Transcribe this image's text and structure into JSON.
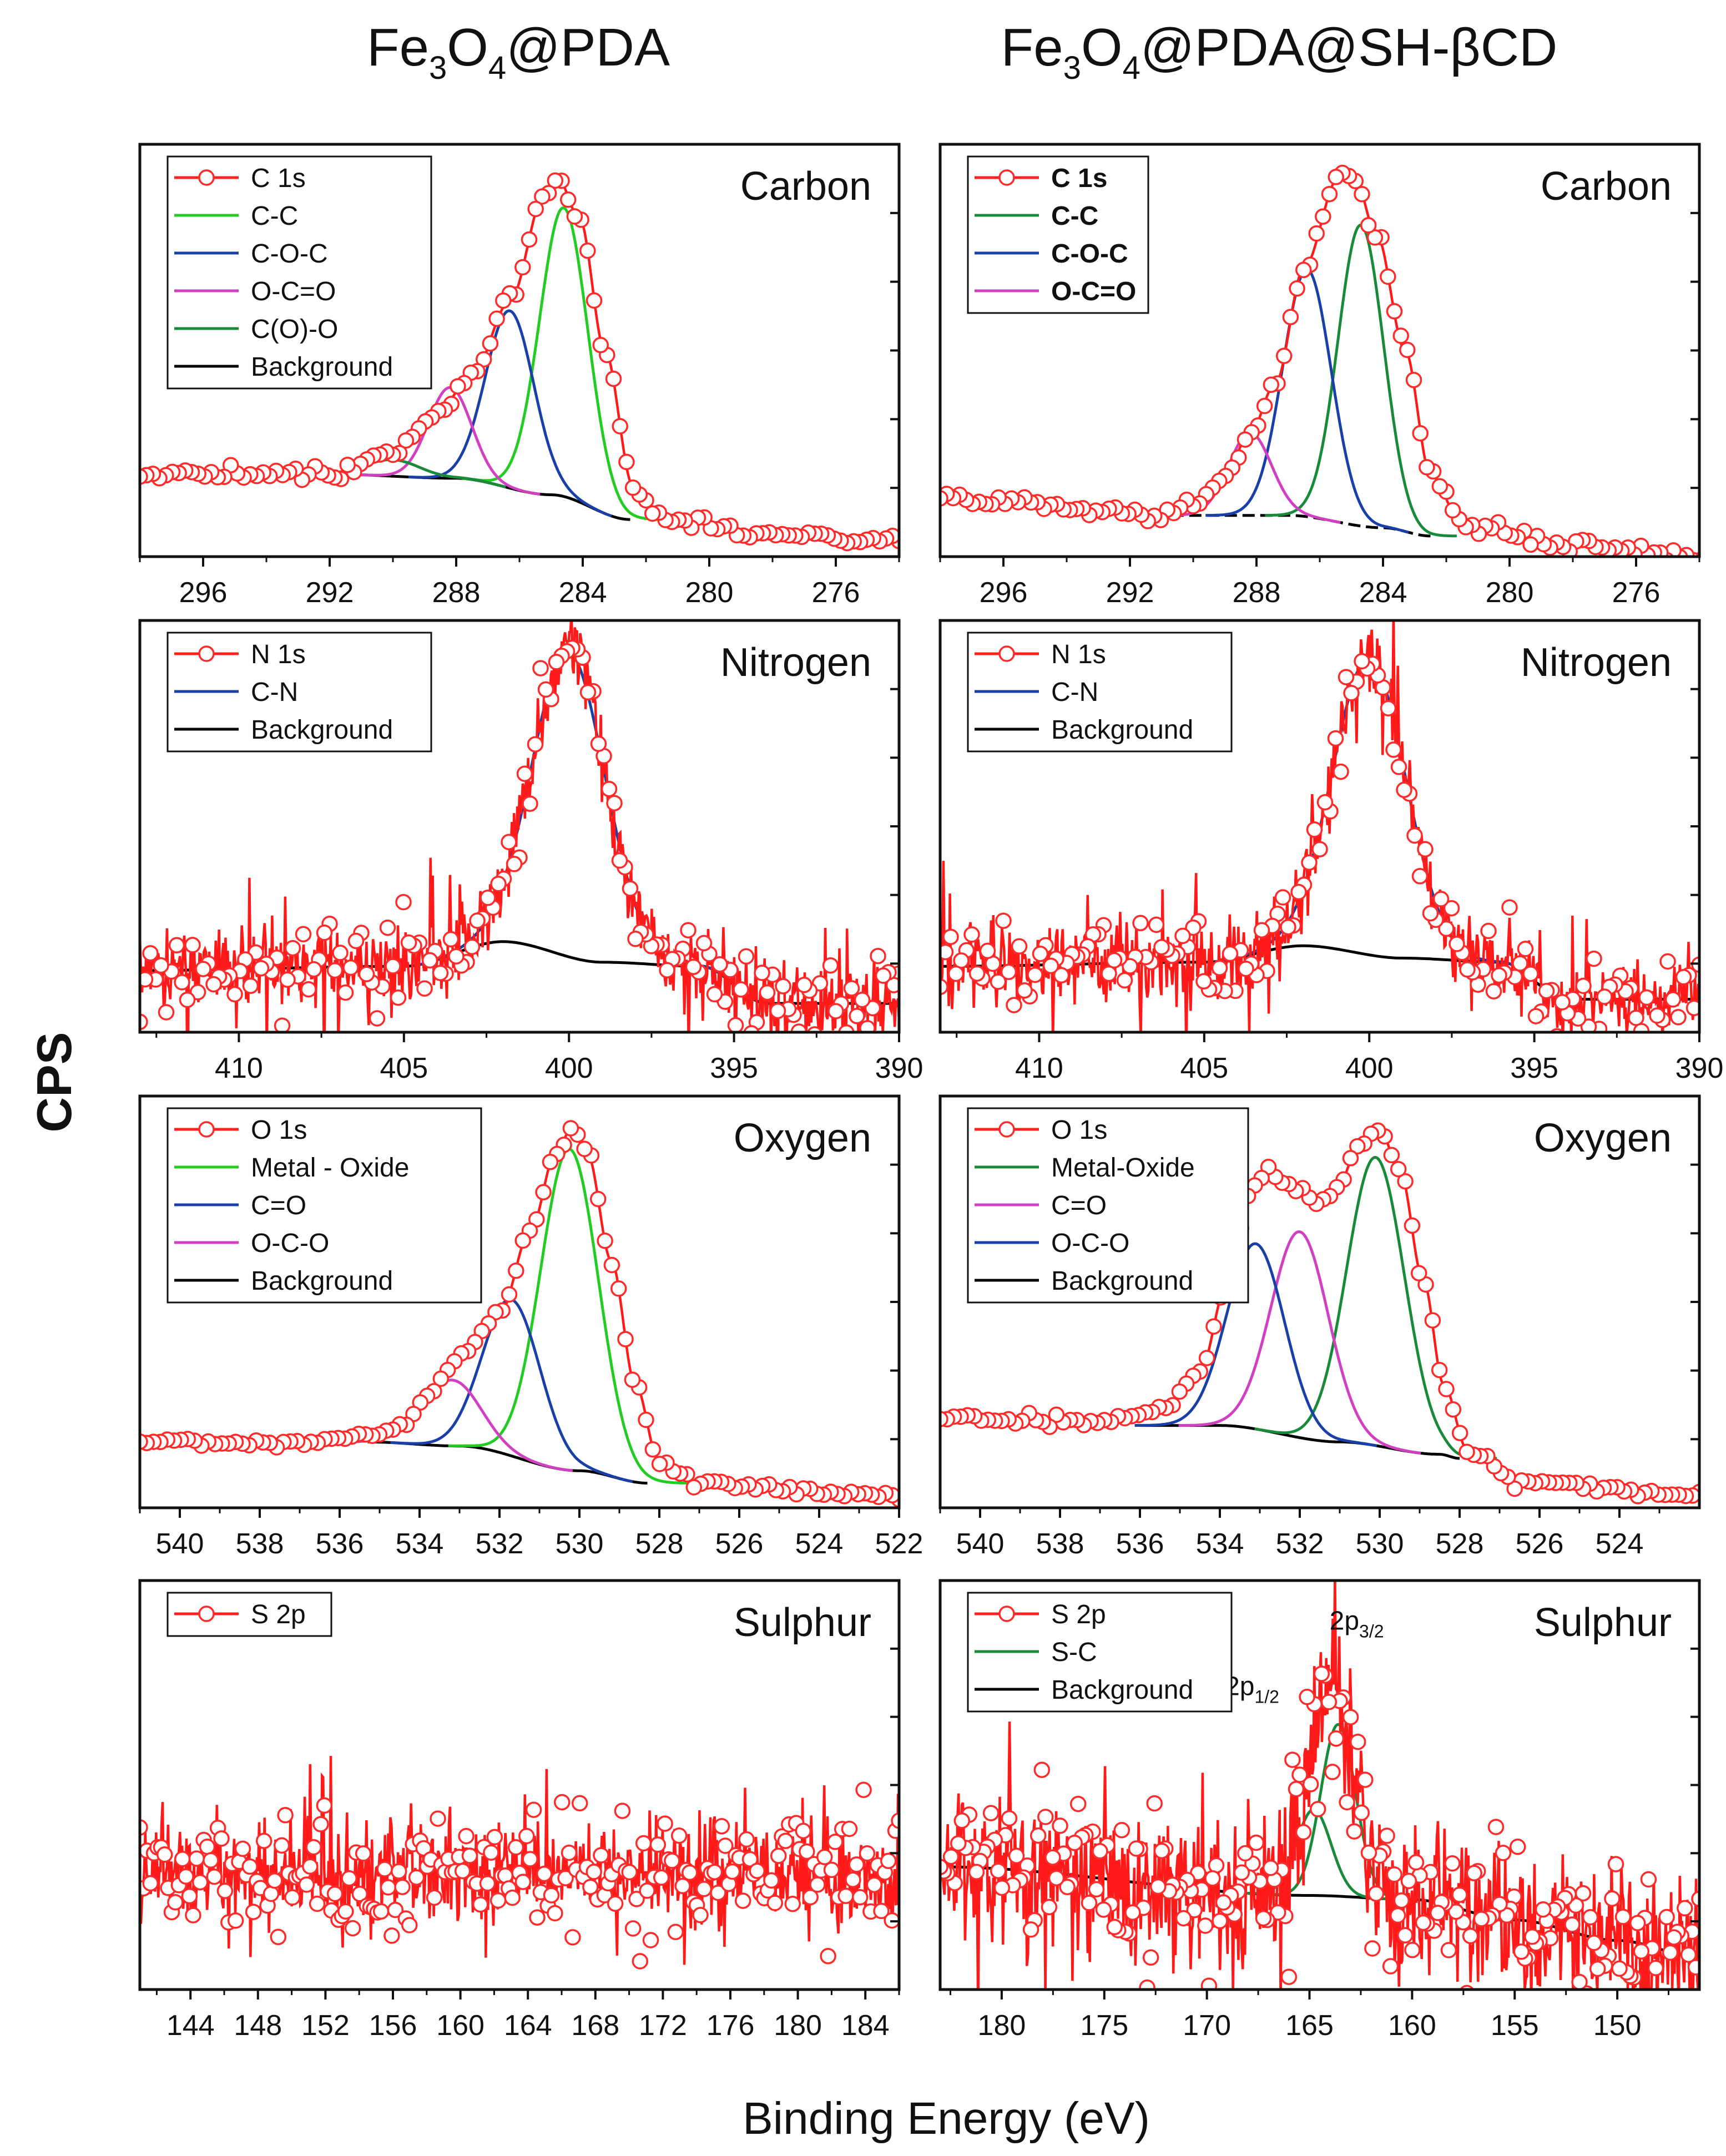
{
  "figure": {
    "col_titles": [
      {
        "base": "Fe",
        "s1": "3",
        "mid": "O",
        "s2": "4",
        "rest": "@PDA"
      },
      {
        "base": "Fe",
        "s1": "3",
        "mid": "O",
        "s2": "4",
        "rest": "@PDA@SH-βCD"
      }
    ],
    "ylabel": "CPS",
    "xlabel": "Binding Energy (eV)"
  },
  "chart_data": [
    {
      "id": "c1s-pda",
      "type": "line",
      "title": "Carbon",
      "xlim": [
        298,
        274
      ],
      "ylim": [
        0,
        1
      ],
      "x_ticks": [
        296,
        292,
        288,
        284,
        280,
        276
      ],
      "legend": [
        {
          "label": "C 1s",
          "color": "#ff2020",
          "marker": true
        },
        {
          "label": "C-C",
          "color": "#22cc22"
        },
        {
          "label": "C-O-C",
          "color": "#1a3fa8"
        },
        {
          "label": "O-C=O",
          "color": "#d040c0"
        },
        {
          "label": "C(O)-O",
          "color": "#188a3a"
        },
        {
          "label": "Background",
          "color": "#000000"
        }
      ],
      "bg": [
        [
          292,
          0.2
        ],
        [
          288,
          0.19
        ],
        [
          285,
          0.15
        ],
        [
          282.5,
          0.09
        ]
      ],
      "peaks": [
        {
          "name": "C-C",
          "color": "#22cc22",
          "center": 284.6,
          "height": 0.7,
          "fwhm": 1.8
        },
        {
          "name": "C-O-C",
          "color": "#1a3fa8",
          "center": 286.3,
          "height": 0.43,
          "fwhm": 1.8
        },
        {
          "name": "O-C=O",
          "color": "#d040c0",
          "center": 288.2,
          "height": 0.22,
          "fwhm": 1.6
        },
        {
          "name": "C(O)-O",
          "color": "#188a3a",
          "center": 290.0,
          "height": 0.04,
          "fwhm": 2.0
        }
      ],
      "env": [
        [
          298,
          0.2
        ],
        [
          292,
          0.2
        ],
        [
          290,
          0.25
        ],
        [
          288.5,
          0.36
        ],
        [
          287.5,
          0.44
        ],
        [
          286.3,
          0.62
        ],
        [
          285.2,
          0.88
        ],
        [
          284.8,
          0.92
        ],
        [
          284.1,
          0.82
        ],
        [
          283.3,
          0.5
        ],
        [
          282.4,
          0.17
        ],
        [
          281.6,
          0.1
        ],
        [
          278,
          0.05
        ],
        [
          274,
          0.04
        ]
      ],
      "env_curve": true,
      "noise": 0.008,
      "n_markers": 118,
      "seed": 11
    },
    {
      "id": "c1s-pda-shbcd",
      "type": "line",
      "title": "Carbon",
      "xlim": [
        298,
        274
      ],
      "ylim": [
        0,
        1
      ],
      "x_ticks": [
        296,
        292,
        288,
        284,
        280,
        276
      ],
      "legend_bold": true,
      "legend": [
        {
          "label": "C 1s",
          "color": "#ff2020",
          "marker": true
        },
        {
          "label": "C-C",
          "color": "#188a3a"
        },
        {
          "label": "C-O-C",
          "color": "#1a3fa8"
        },
        {
          "label": "O-C=O",
          "color": "#d040c0"
        }
      ],
      "bg": [
        [
          291,
          0.1
        ],
        [
          287,
          0.1
        ],
        [
          284,
          0.07
        ],
        [
          282.5,
          0.05
        ]
      ],
      "bg_dashed": true,
      "peaks": [
        {
          "name": "C-C",
          "color": "#188a3a",
          "center": 284.7,
          "height": 0.73,
          "fwhm": 1.7
        },
        {
          "name": "C-O-C",
          "color": "#1a3fa8",
          "center": 286.4,
          "height": 0.6,
          "fwhm": 1.8
        },
        {
          "name": "O-C=O",
          "color": "#d040c0",
          "center": 288.2,
          "height": 0.2,
          "fwhm": 1.6
        }
      ],
      "env": [
        [
          298,
          0.14
        ],
        [
          291,
          0.1
        ],
        [
          290,
          0.12
        ],
        [
          289,
          0.2
        ],
        [
          288.2,
          0.3
        ],
        [
          287.4,
          0.42
        ],
        [
          286.5,
          0.7
        ],
        [
          285.4,
          0.92
        ],
        [
          284.9,
          0.92
        ],
        [
          284.2,
          0.78
        ],
        [
          283.3,
          0.5
        ],
        [
          282.5,
          0.2
        ],
        [
          281.5,
          0.08
        ],
        [
          278,
          0.03
        ],
        [
          274,
          0.0
        ]
      ],
      "env_curve": true,
      "noise": 0.008,
      "n_markers": 118,
      "seed": 23
    },
    {
      "id": "n1s-pda",
      "type": "line",
      "title": "Nitrogen",
      "xlim": [
        413,
        390
      ],
      "ylim": [
        0,
        1
      ],
      "x_ticks": [
        410,
        405,
        400,
        395,
        390
      ],
      "legend": [
        {
          "label": "N 1s",
          "color": "#ff2020",
          "marker": true
        },
        {
          "label": "C-N",
          "color": "#1a3fa8"
        },
        {
          "label": "Background",
          "color": "#000000"
        }
      ],
      "bg": [
        [
          413,
          0.15
        ],
        [
          405,
          0.16
        ],
        [
          402,
          0.22
        ],
        [
          399,
          0.17
        ],
        [
          396,
          0.16
        ],
        [
          394,
          0.07
        ],
        [
          390,
          0.07
        ]
      ],
      "peaks": [
        {
          "name": "C-N",
          "color": "#1a3fa8",
          "center": 400.0,
          "height": 0.74,
          "fwhm": 2.6
        }
      ],
      "env_from_peaks": true,
      "noise": 0.05,
      "n_markers": 145,
      "seed": 7
    },
    {
      "id": "n1s-pda-shbcd",
      "type": "line",
      "title": "Nitrogen",
      "xlim": [
        413,
        390
      ],
      "ylim": [
        0,
        1
      ],
      "x_ticks": [
        410,
        405,
        400,
        395,
        390
      ],
      "legend": [
        {
          "label": "N 1s",
          "color": "#ff2020",
          "marker": true
        },
        {
          "label": "C-N",
          "color": "#1a3fa8"
        },
        {
          "label": "Background",
          "color": "#000000"
        }
      ],
      "bg": [
        [
          413,
          0.16
        ],
        [
          405,
          0.17
        ],
        [
          402,
          0.21
        ],
        [
          399,
          0.18
        ],
        [
          396,
          0.17
        ],
        [
          394,
          0.08
        ],
        [
          390,
          0.08
        ]
      ],
      "peaks": [
        {
          "name": "C-N",
          "color": "#1a3fa8",
          "center": 400.0,
          "height": 0.72,
          "fwhm": 2.6
        }
      ],
      "env_from_peaks": true,
      "noise": 0.05,
      "n_markers": 145,
      "seed": 19
    },
    {
      "id": "o1s-pda",
      "type": "line",
      "title": "Oxygen",
      "xlim": [
        541,
        522
      ],
      "ylim": [
        0,
        1
      ],
      "x_ticks": [
        540,
        538,
        536,
        534,
        532,
        530,
        528,
        526,
        524,
        522
      ],
      "legend": [
        {
          "label": "O 1s",
          "color": "#ff2020",
          "marker": true
        },
        {
          "label": "Metal - Oxide",
          "color": "#22cc22"
        },
        {
          "label": "C=O",
          "color": "#1a3fa8"
        },
        {
          "label": "O-C-O",
          "color": "#d040c0"
        },
        {
          "label": "Background",
          "color": "#000000"
        }
      ],
      "bg": [
        [
          535.3,
          0.16
        ],
        [
          533,
          0.15
        ],
        [
          530,
          0.09
        ],
        [
          528.3,
          0.06
        ]
      ],
      "peaks": [
        {
          "name": "Metal - Oxide",
          "color": "#22cc22",
          "center": 530.25,
          "height": 0.78,
          "fwhm": 1.7
        },
        {
          "name": "C=O",
          "color": "#1a3fa8",
          "center": 531.7,
          "height": 0.38,
          "fwhm": 1.7
        },
        {
          "name": "O-C-O",
          "color": "#d040c0",
          "center": 533.2,
          "height": 0.16,
          "fwhm": 1.7
        }
      ],
      "env": [
        [
          541,
          0.16
        ],
        [
          537,
          0.16
        ],
        [
          535.3,
          0.17
        ],
        [
          534.5,
          0.2
        ],
        [
          533.8,
          0.27
        ],
        [
          533,
          0.36
        ],
        [
          532,
          0.47
        ],
        [
          531.2,
          0.68
        ],
        [
          530.6,
          0.86
        ],
        [
          530.2,
          0.92
        ],
        [
          529.8,
          0.86
        ],
        [
          529.2,
          0.6
        ],
        [
          528.6,
          0.3
        ],
        [
          528,
          0.11
        ],
        [
          527,
          0.06
        ],
        [
          522,
          0.03
        ]
      ],
      "env_curve": true,
      "noise": 0.006,
      "n_markers": 112,
      "seed": 3
    },
    {
      "id": "o1s-pda-shbcd",
      "type": "line",
      "title": "Oxygen",
      "xlim": [
        541,
        522
      ],
      "ylim": [
        0,
        1
      ],
      "x_ticks": [
        540,
        538,
        536,
        534,
        532,
        530,
        528,
        526,
        524
      ],
      "legend": [
        {
          "label": "O 1s",
          "color": "#ff2020",
          "marker": true
        },
        {
          "label": "Metal-Oxide",
          "color": "#188a3a"
        },
        {
          "label": "C=O",
          "color": "#d040c0"
        },
        {
          "label": "O-C-O",
          "color": "#1a3fa8"
        },
        {
          "label": "Background",
          "color": "#000000"
        }
      ],
      "bg": [
        [
          536,
          0.2
        ],
        [
          534,
          0.2
        ],
        [
          531,
          0.16
        ],
        [
          528.5,
          0.13
        ],
        [
          528,
          0.12
        ]
      ],
      "peaks": [
        {
          "name": "Metal-Oxide",
          "color": "#188a3a",
          "center": 530.1,
          "height": 0.7,
          "fwhm": 1.7
        },
        {
          "name": "C=O",
          "color": "#d040c0",
          "center": 532.0,
          "height": 0.5,
          "fwhm": 1.7
        },
        {
          "name": "O-C-O",
          "color": "#1a3fa8",
          "center": 533.1,
          "height": 0.45,
          "fwhm": 1.7
        }
      ],
      "env": [
        [
          541,
          0.22
        ],
        [
          537,
          0.21
        ],
        [
          535.5,
          0.24
        ],
        [
          534.5,
          0.33
        ],
        [
          533.8,
          0.55
        ],
        [
          533.2,
          0.77
        ],
        [
          532.8,
          0.82
        ],
        [
          532.2,
          0.78
        ],
        [
          531.6,
          0.74
        ],
        [
          531.1,
          0.77
        ],
        [
          530.5,
          0.88
        ],
        [
          530.0,
          0.92
        ],
        [
          529.5,
          0.82
        ],
        [
          528.9,
          0.55
        ],
        [
          528.4,
          0.3
        ],
        [
          527.8,
          0.14
        ],
        [
          526.5,
          0.06
        ],
        [
          522,
          0.03
        ]
      ],
      "env_curve": true,
      "noise": 0.006,
      "n_markers": 112,
      "seed": 29
    },
    {
      "id": "s2p-pda",
      "type": "line",
      "title": "Sulphur",
      "xlim": [
        141,
        186
      ],
      "ylim": [
        0,
        1
      ],
      "x_ticks": [
        144,
        148,
        152,
        156,
        160,
        164,
        168,
        172,
        176,
        180,
        184
      ],
      "legend": [
        {
          "label": "S 2p",
          "color": "#ff2020",
          "marker": true
        }
      ],
      "noise_base": 0.28,
      "noise": 0.07,
      "n_markers": 215,
      "seed": 41
    },
    {
      "id": "s2p-pda-shbcd",
      "type": "line",
      "title": "Sulphur",
      "xlim": [
        183,
        146
      ],
      "ylim": [
        0,
        1
      ],
      "x_ticks": [
        180,
        175,
        170,
        165,
        160,
        155,
        150
      ],
      "legend": [
        {
          "label": "S 2p",
          "color": "#ff2020",
          "marker": true
        },
        {
          "label": "S-C",
          "color": "#188a3a"
        },
        {
          "label": "Background",
          "color": "#000000"
        }
      ],
      "bg": [
        [
          183,
          0.3
        ],
        [
          165,
          0.23
        ],
        [
          160,
          0.22
        ],
        [
          155,
          0.17
        ],
        [
          150,
          0.12
        ],
        [
          146,
          0.08
        ]
      ],
      "peaks": [
        {
          "name": "S-C",
          "color": "#188a3a",
          "center": 163.6,
          "height": 0.42,
          "fwhm": 2.0
        },
        {
          "name": "S-C",
          "color": "#188a3a",
          "center": 164.8,
          "height": 0.21,
          "fwhm": 2.0
        }
      ],
      "peaks_are_components": true,
      "noise_base_from_bg": true,
      "noise": 0.1,
      "n_markers": 210,
      "seed": 53,
      "annotations": [
        {
          "base": "2p",
          "sub": "1/2",
          "x": 167.8,
          "y": 0.72
        },
        {
          "base": "2p",
          "sub": "3/2",
          "x": 162.7,
          "y": 0.88
        }
      ]
    }
  ]
}
